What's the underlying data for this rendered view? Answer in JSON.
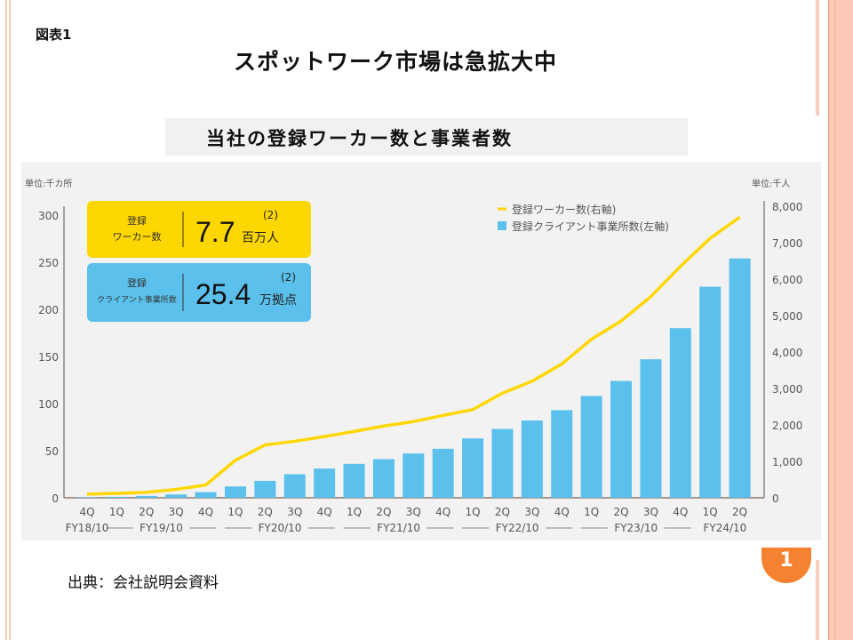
{
  "slide": {
    "figure_label": "図表1",
    "title": "スポットワーク市場は急拡大中",
    "subtitle": "当社の登録ワーカー数と事業者数",
    "source": "出典：会社説明会資料",
    "page_number": "1"
  },
  "callouts": [
    {
      "label_line1": "登録",
      "label_line2": "ワーカー数",
      "value": "7.7",
      "unit": "百万人",
      "note": "(2)",
      "color": "#ffd700"
    },
    {
      "label_line1": "登録",
      "label_line2": "クライアント事業所数",
      "value": "25.4",
      "unit": "万拠点",
      "note": "(2)",
      "color": "#5bc0eb"
    }
  ],
  "chart_data": {
    "type": "bar",
    "title": "当社の登録ワーカー数と事業者数",
    "categories": [
      "4Q",
      "1Q",
      "2Q",
      "3Q",
      "4Q",
      "1Q",
      "2Q",
      "3Q",
      "4Q",
      "1Q",
      "2Q",
      "3Q",
      "4Q",
      "1Q",
      "2Q",
      "3Q",
      "4Q",
      "1Q",
      "2Q",
      "3Q",
      "4Q",
      "1Q",
      "2Q"
    ],
    "fiscal_year_groups": [
      {
        "label": "FY18/10",
        "start": 0,
        "end": 0
      },
      {
        "label": "FY19/10",
        "start": 1,
        "end": 4
      },
      {
        "label": "FY20/10",
        "start": 5,
        "end": 8
      },
      {
        "label": "FY21/10",
        "start": 9,
        "end": 12
      },
      {
        "label": "FY22/10",
        "start": 13,
        "end": 16
      },
      {
        "label": "FY23/10",
        "start": 17,
        "end": 20
      },
      {
        "label": "FY24/10",
        "start": 21,
        "end": 22
      }
    ],
    "series": [
      {
        "name": "登録クライアント事業所数(左軸)",
        "type": "bar",
        "axis": "left",
        "color": "#5bc0eb",
        "values": [
          0.5,
          1,
          2,
          3.5,
          6,
          12,
          18,
          25,
          31,
          36,
          41,
          47,
          52,
          63,
          73,
          82,
          93,
          108,
          124,
          147,
          180,
          224,
          254
        ]
      },
      {
        "name": "登録ワーカー数(右軸)",
        "type": "line",
        "axis": "right",
        "color": "#ffd700",
        "values": [
          100,
          120,
          150,
          230,
          350,
          1030,
          1450,
          1550,
          1680,
          1820,
          1970,
          2090,
          2260,
          2420,
          2870,
          3200,
          3670,
          4350,
          4850,
          5520,
          6350,
          7120,
          7700
        ]
      }
    ],
    "left_axis": {
      "unit_label": "単位:千カ所",
      "ylim": [
        0,
        300
      ],
      "ticks": [
        "0",
        "50",
        "100",
        "150",
        "200",
        "250",
        "300"
      ]
    },
    "right_axis": {
      "unit_label": "単位:千人",
      "ylim": [
        0,
        8000
      ],
      "ticks": [
        "0",
        "1,000",
        "2,000",
        "3,000",
        "4,000",
        "5,000",
        "6,000",
        "7,000",
        "8,000"
      ]
    },
    "legend": {
      "position": "top-right",
      "items": [
        "登録ワーカー数(右軸)",
        "登録クライアント事業所数(左軸)"
      ]
    },
    "grid": false
  }
}
